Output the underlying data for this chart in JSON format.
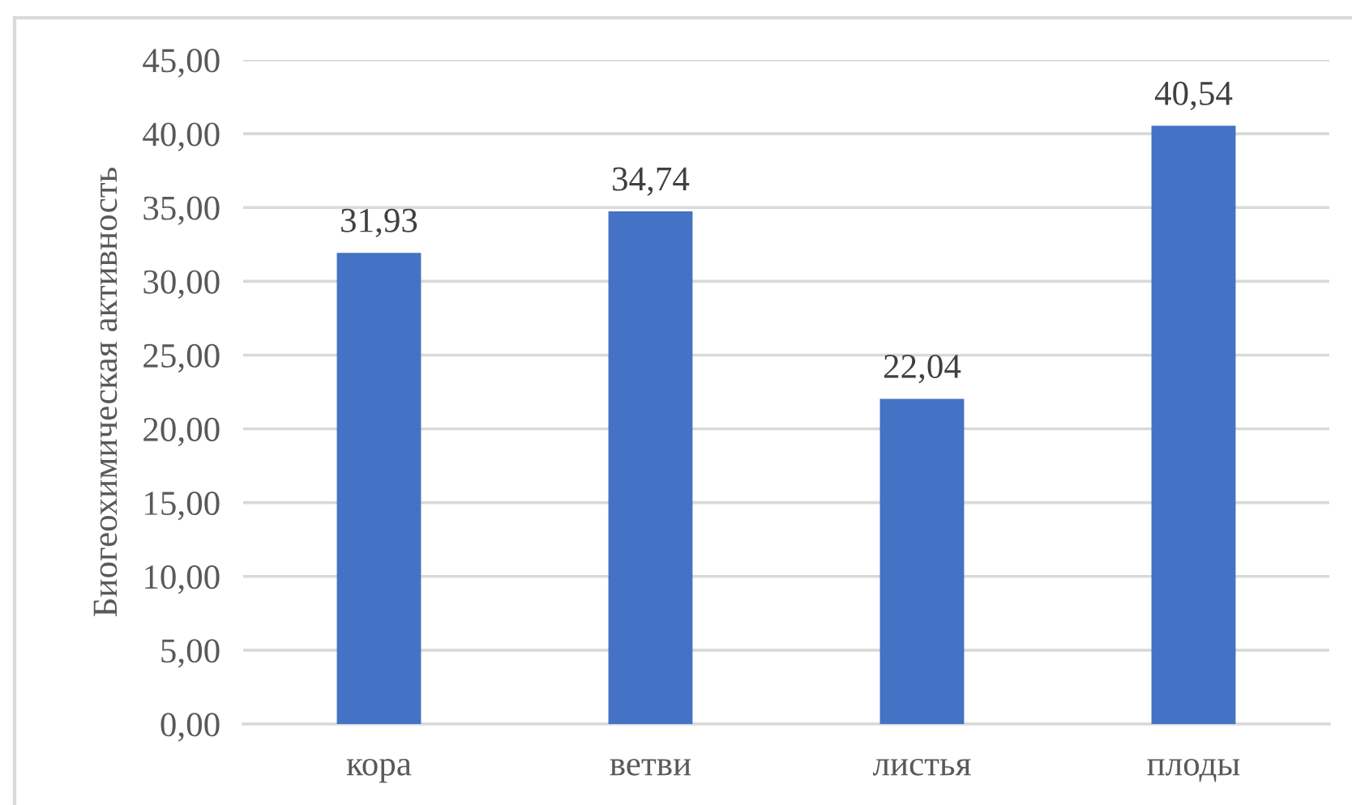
{
  "chart_data": {
    "type": "bar",
    "ylabel": "Биогеохимическая активность",
    "categories": [
      "кора",
      "ветви",
      "листья",
      "плоды"
    ],
    "values": [
      31.93,
      34.74,
      22.04,
      40.54
    ],
    "value_labels": [
      "31,93",
      "34,74",
      "22,04",
      "40,54"
    ],
    "color": "#4472c4",
    "ylim": [
      0,
      45
    ],
    "yticks": [
      {
        "value": 0,
        "label": "0,00"
      },
      {
        "value": 5,
        "label": "5,00"
      },
      {
        "value": 10,
        "label": "10,00"
      },
      {
        "value": 15,
        "label": "15,00"
      },
      {
        "value": 20,
        "label": "20,00"
      },
      {
        "value": 25,
        "label": "25,00"
      },
      {
        "value": 30,
        "label": "30,00"
      },
      {
        "value": 35,
        "label": "35,00"
      },
      {
        "value": 40,
        "label": "40,00"
      },
      {
        "value": 45,
        "label": "45,00"
      }
    ],
    "grid": "y",
    "legend": false
  }
}
